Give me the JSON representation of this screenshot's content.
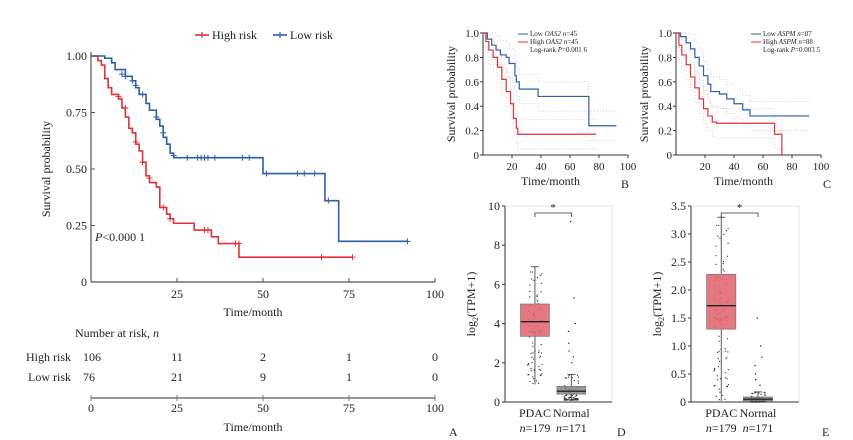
{
  "colors": {
    "high": "#e0303a",
    "low": "#2f5ea8",
    "pdac_box": "#e0606a",
    "normal_box": "#888888",
    "axis": "#555555"
  },
  "chart_data": [
    {
      "panel": "A",
      "type": "line",
      "subtype": "kaplan-meier",
      "xlabel": "Time/month",
      "ylabel": "Survival probability",
      "xlim": [
        0,
        100
      ],
      "ylim": [
        0,
        1
      ],
      "xticks": [
        "0",
        "25",
        "50",
        "75",
        "100"
      ],
      "xtick_values": [
        0,
        25,
        50,
        75,
        100
      ],
      "yticks": [
        "0",
        "0.25",
        "0.50",
        "0.75",
        "1.00"
      ],
      "ytick_values": [
        0,
        0.25,
        0.5,
        0.75,
        1.0
      ],
      "legend": [
        "High risk",
        "Low risk"
      ],
      "legend_placement": "top",
      "annotation": "P<0.000 1",
      "series": [
        {
          "name": "High risk",
          "color_key": "high",
          "steps": [
            [
              0,
              1.0
            ],
            [
              2,
              0.98
            ],
            [
              3,
              0.96
            ],
            [
              4,
              0.9
            ],
            [
              5,
              0.86
            ],
            [
              6,
              0.83
            ],
            [
              8,
              0.81
            ],
            [
              9,
              0.77
            ],
            [
              10,
              0.73
            ],
            [
              11,
              0.68
            ],
            [
              12,
              0.66
            ],
            [
              13,
              0.61
            ],
            [
              14,
              0.58
            ],
            [
              15,
              0.53
            ],
            [
              16,
              0.47
            ],
            [
              17,
              0.44
            ],
            [
              19,
              0.42
            ],
            [
              20,
              0.33
            ],
            [
              22,
              0.3
            ],
            [
              23,
              0.28
            ],
            [
              24,
              0.26
            ],
            [
              30,
              0.23
            ],
            [
              35,
              0.2
            ],
            [
              37,
              0.17
            ],
            [
              43,
              0.11
            ],
            [
              76,
              0.11
            ]
          ],
          "censors": [
            [
              8,
              0.82
            ],
            [
              10,
              0.77
            ],
            [
              13,
              0.62
            ],
            [
              15,
              0.53
            ],
            [
              17,
              0.46
            ],
            [
              21,
              0.33
            ],
            [
              23,
              0.28
            ],
            [
              33,
              0.23
            ],
            [
              34,
              0.23
            ],
            [
              42,
              0.17
            ],
            [
              43,
              0.17
            ],
            [
              67,
              0.11
            ],
            [
              76,
              0.11
            ]
          ]
        },
        {
          "name": "Low risk",
          "color_key": "low",
          "steps": [
            [
              0,
              1.0
            ],
            [
              4,
              0.99
            ],
            [
              6,
              0.97
            ],
            [
              7,
              0.94
            ],
            [
              10,
              0.91
            ],
            [
              12,
              0.89
            ],
            [
              13,
              0.86
            ],
            [
              14,
              0.83
            ],
            [
              16,
              0.79
            ],
            [
              17,
              0.76
            ],
            [
              19,
              0.72
            ],
            [
              20,
              0.69
            ],
            [
              21,
              0.64
            ],
            [
              22,
              0.61
            ],
            [
              23,
              0.57
            ],
            [
              24,
              0.55
            ],
            [
              50,
              0.48
            ],
            [
              68,
              0.36
            ],
            [
              72,
              0.18
            ],
            [
              92,
              0.18
            ]
          ],
          "censors": [
            [
              9,
              0.92
            ],
            [
              10,
              0.91
            ],
            [
              12,
              0.89
            ],
            [
              13,
              0.87
            ],
            [
              15,
              0.83
            ],
            [
              19,
              0.73
            ],
            [
              21,
              0.66
            ],
            [
              24,
              0.56
            ],
            [
              28,
              0.55
            ],
            [
              31,
              0.55
            ],
            [
              32,
              0.55
            ],
            [
              33,
              0.55
            ],
            [
              34,
              0.55
            ],
            [
              36,
              0.55
            ],
            [
              44,
              0.55
            ],
            [
              46,
              0.55
            ],
            [
              51,
              0.48
            ],
            [
              60,
              0.48
            ],
            [
              62,
              0.48
            ],
            [
              65,
              0.48
            ],
            [
              69,
              0.36
            ],
            [
              92,
              0.18
            ]
          ]
        }
      ],
      "risk_table": {
        "title": "Number at risk, n",
        "rows": [
          {
            "label": "High risk",
            "values": [
              "106",
              "11",
              "2",
              "1",
              "0"
            ]
          },
          {
            "label": "Low risk",
            "values": [
              "76",
              "21",
              "9",
              "1",
              "0"
            ]
          }
        ],
        "xticks": [
          "0",
          "25",
          "50",
          "75",
          "100"
        ],
        "xlabel": "Time/month"
      }
    },
    {
      "panel": "B",
      "type": "line",
      "subtype": "kaplan-meier",
      "xlabel": "Time/month",
      "ylabel": "Survival probability",
      "xlim": [
        0,
        100
      ],
      "ylim": [
        0,
        1
      ],
      "xticks": [
        "20",
        "40",
        "60",
        "80",
        "100"
      ],
      "xtick_values": [
        20,
        40,
        60,
        80,
        100
      ],
      "yticks": [
        "0",
        "0.2",
        "0.4",
        "0.6",
        "0.8",
        "1.0"
      ],
      "ytick_values": [
        0,
        0.2,
        0.4,
        0.6,
        0.8,
        1.0
      ],
      "legend": [
        "Low OAS2 n=45",
        "High OAS2 n=45",
        "Log-rank P=0.001 6"
      ],
      "legend_placement": "top-right",
      "series": [
        {
          "name": "Low OAS2",
          "color_key": "low",
          "steps": [
            [
              0,
              1.0
            ],
            [
              3,
              0.95
            ],
            [
              6,
              0.9
            ],
            [
              9,
              0.86
            ],
            [
              12,
              0.82
            ],
            [
              16,
              0.8
            ],
            [
              18,
              0.75
            ],
            [
              22,
              0.65
            ],
            [
              23,
              0.6
            ],
            [
              25,
              0.54
            ],
            [
              38,
              0.48
            ],
            [
              73,
              0.24
            ],
            [
              92,
              0.24
            ]
          ]
        },
        {
          "name": "High OAS2",
          "color_key": "high",
          "steps": [
            [
              0,
              1.0
            ],
            [
              2,
              0.93
            ],
            [
              4,
              0.86
            ],
            [
              7,
              0.8
            ],
            [
              10,
              0.72
            ],
            [
              13,
              0.62
            ],
            [
              16,
              0.52
            ],
            [
              19,
              0.42
            ],
            [
              21,
              0.3
            ],
            [
              23,
              0.22
            ],
            [
              24,
              0.17
            ],
            [
              78,
              0.17
            ]
          ]
        }
      ]
    },
    {
      "panel": "C",
      "type": "line",
      "subtype": "kaplan-meier",
      "xlabel": "Time/month",
      "ylabel": "Survival probability",
      "xlim": [
        0,
        100
      ],
      "ylim": [
        0,
        1
      ],
      "xticks": [
        "20",
        "40",
        "60",
        "80",
        "100"
      ],
      "xtick_values": [
        20,
        40,
        60,
        80,
        100
      ],
      "yticks": [
        "0",
        "0.2",
        "0.4",
        "0.6",
        "0.8",
        "1.0"
      ],
      "ytick_values": [
        0,
        0.2,
        0.4,
        0.6,
        0.8,
        1.0
      ],
      "legend": [
        "Low ASPM n=87",
        "High ASPM n=88",
        "Log-rank P=0.003 5"
      ],
      "legend_placement": "top-right",
      "series": [
        {
          "name": "Low ASPM",
          "color_key": "low",
          "steps": [
            [
              0,
              1.0
            ],
            [
              3,
              0.97
            ],
            [
              7,
              0.92
            ],
            [
              10,
              0.87
            ],
            [
              13,
              0.8
            ],
            [
              16,
              0.73
            ],
            [
              19,
              0.65
            ],
            [
              22,
              0.58
            ],
            [
              24,
              0.52
            ],
            [
              30,
              0.5
            ],
            [
              35,
              0.46
            ],
            [
              40,
              0.42
            ],
            [
              46,
              0.37
            ],
            [
              51,
              0.32
            ],
            [
              92,
              0.32
            ]
          ]
        },
        {
          "name": "High ASPM",
          "color_key": "high",
          "steps": [
            [
              0,
              1.0
            ],
            [
              2,
              0.9
            ],
            [
              4,
              0.82
            ],
            [
              7,
              0.74
            ],
            [
              10,
              0.64
            ],
            [
              13,
              0.55
            ],
            [
              16,
              0.46
            ],
            [
              19,
              0.38
            ],
            [
              22,
              0.32
            ],
            [
              25,
              0.27
            ],
            [
              28,
              0.26
            ],
            [
              68,
              0.17
            ],
            [
              73,
              0
            ],
            [
              74,
              0
            ]
          ]
        }
      ]
    },
    {
      "panel": "D",
      "type": "box",
      "ylabel": "log2(TPM+1)",
      "ylim": [
        0,
        10
      ],
      "yticks": [
        "0",
        "2",
        "4",
        "6",
        "8",
        "10"
      ],
      "ytick_values": [
        0,
        2,
        4,
        6,
        8,
        10
      ],
      "significance": "*",
      "groups": [
        {
          "name": "PDAC",
          "n_label": "n=179",
          "color_key": "pdac_box",
          "min": 0.9,
          "q1": 3.35,
          "median": 4.1,
          "q3": 5.0,
          "max": 6.9
        },
        {
          "name": "Normal",
          "n_label": "n=171",
          "color_key": "normal_box",
          "min": 0.1,
          "q1": 0.4,
          "median": 0.55,
          "q3": 0.8,
          "max": 1.4,
          "outliers": [
            9.2,
            5.3,
            4.0,
            3.6,
            3.0,
            2.6,
            2.3,
            2.0
          ]
        }
      ]
    },
    {
      "panel": "E",
      "type": "box",
      "ylabel": "log2(TPM+1)",
      "ylim": [
        0,
        3.5
      ],
      "yticks": [
        "0",
        "0.5",
        "1.0",
        "1.5",
        "2.0",
        "2.5",
        "3.0",
        "3.5"
      ],
      "ytick_values": [
        0,
        0.5,
        1.0,
        1.5,
        2.0,
        2.5,
        3.0,
        3.5
      ],
      "significance": "*",
      "groups": [
        {
          "name": "PDAC",
          "n_label": "n=179",
          "color_key": "pdac_box",
          "min": 0.02,
          "q1": 1.3,
          "median": 1.72,
          "q3": 2.28,
          "max": 3.3
        },
        {
          "name": "Normal",
          "n_label": "n=171",
          "color_key": "normal_box",
          "min": 0.0,
          "q1": 0.02,
          "median": 0.05,
          "q3": 0.09,
          "max": 0.18,
          "outliers": [
            1.5,
            1.0,
            0.8,
            0.65,
            0.5,
            0.4,
            0.3
          ]
        }
      ]
    }
  ]
}
